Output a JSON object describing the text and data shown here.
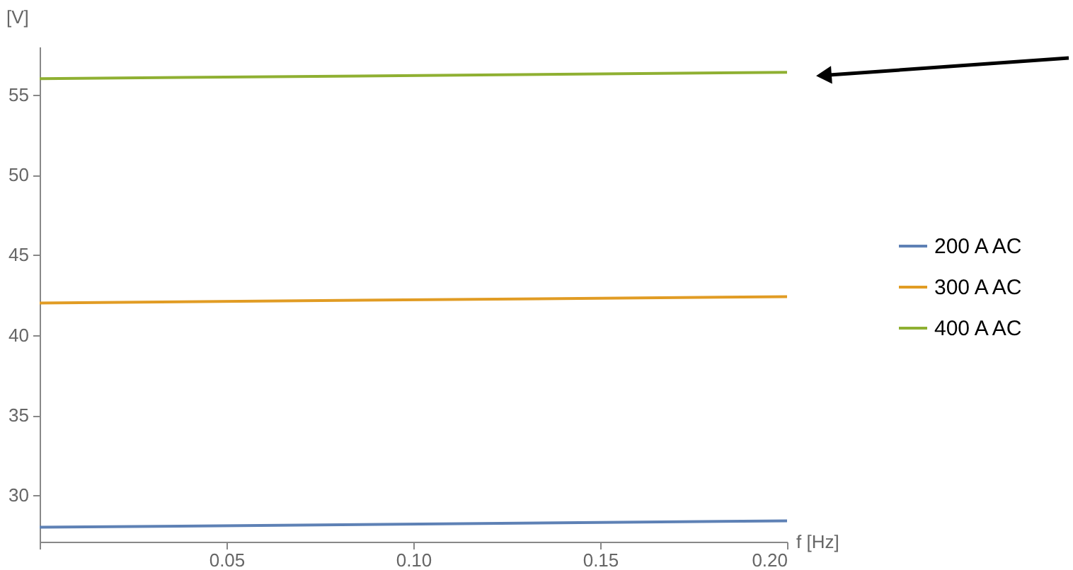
{
  "chart_data": {
    "type": "line",
    "xlabel": "f [Hz]",
    "ylabel": "[V]",
    "x": [
      0,
      0.2
    ],
    "series": [
      {
        "name": "200 A AC",
        "color": "#5e81b5",
        "values": [
          28.0,
          28.4
        ]
      },
      {
        "name": "300 A AC",
        "color": "#e19c24",
        "values": [
          42.0,
          42.4
        ]
      },
      {
        "name": "400 A AC",
        "color": "#8fb032",
        "values": [
          56.0,
          56.4
        ]
      }
    ],
    "xlim": [
      0,
      0.2
    ],
    "ylim": [
      27.1,
      58
    ],
    "xticks": [
      {
        "value": 0,
        "label": null
      },
      0.05,
      {
        "value": 0.1,
        "label": "0.10"
      },
      0.15,
      {
        "value": 0.2,
        "label": "0.20"
      }
    ],
    "yticks": [
      30,
      35,
      40,
      45,
      50,
      55
    ],
    "grid": false,
    "legend": "right",
    "marker": "none",
    "line_style": "solid"
  }
}
